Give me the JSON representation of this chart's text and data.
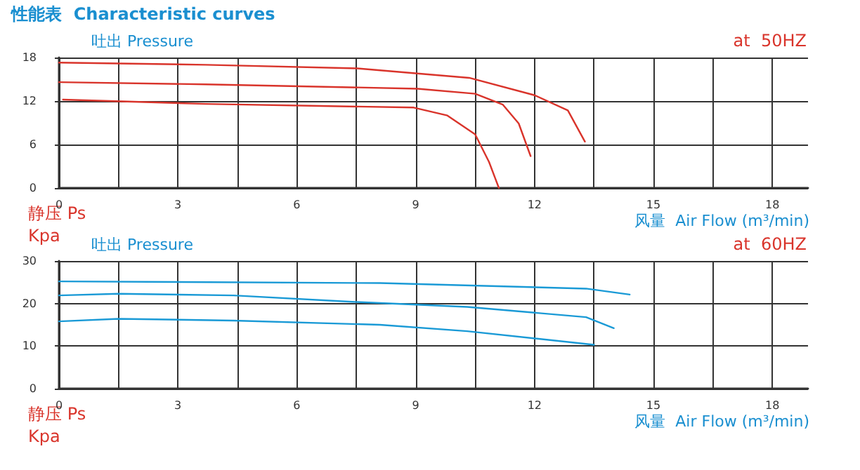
{
  "chart_data": [
    {
      "type": "line",
      "title": "性能表  Characteristic curves",
      "ylabel": "吐出 Pressure",
      "xlabel": "风量  Air Flow (m³/min)",
      "annotations": [
        "at  50HZ",
        "静压 Ps",
        "Kpa"
      ],
      "xlim": [
        0,
        18.9
      ],
      "xticks": [
        0,
        {
          "value": 1.5,
          "label": null
        },
        3,
        {
          "value": 4.5,
          "label": null
        },
        6,
        {
          "value": 7.5,
          "label": null
        },
        9,
        {
          "value": 10.5,
          "label": null
        },
        12,
        {
          "value": 13.5,
          "label": null
        },
        15,
        {
          "value": 16.5,
          "label": null
        },
        18
      ],
      "ylim": [
        0,
        18
      ],
      "yticks": [
        0,
        6,
        12,
        18
      ],
      "grid": true,
      "marker": "none",
      "line_style": "solid",
      "series": [
        {
          "color": "#d9342b",
          "x": [
            0,
            3.7,
            7.53,
            10.35,
            12.0,
            12.84,
            13.27
          ],
          "values": [
            17.3,
            17.0,
            16.5,
            15.2,
            12.8,
            10.7,
            6.4
          ]
        },
        {
          "color": "#d9342b",
          "x": [
            0,
            3.7,
            9.05,
            10.5,
            11.2,
            11.6,
            11.9
          ],
          "values": [
            14.6,
            14.3,
            13.7,
            13.0,
            11.5,
            8.9,
            4.4
          ]
        },
        {
          "color": "#d9342b",
          "x": [
            0.1,
            3.7,
            8.95,
            9.8,
            10.5,
            10.85,
            11.1
          ],
          "values": [
            12.2,
            11.6,
            11.1,
            10.0,
            7.4,
            3.6,
            0
          ]
        }
      ]
    },
    {
      "type": "line",
      "ylabel": "吐出 Pressure",
      "xlabel": "风量  Air Flow (m³/min)",
      "annotations": [
        "at  60HZ",
        "静压 Ps",
        "Kpa"
      ],
      "xlim": [
        0,
        18.9
      ],
      "xticks": [
        0,
        {
          "value": 1.5,
          "label": null
        },
        3,
        {
          "value": 4.5,
          "label": null
        },
        6,
        {
          "value": 7.5,
          "label": null
        },
        9,
        {
          "value": 10.5,
          "label": null
        },
        12,
        {
          "value": 13.5,
          "label": null
        },
        15,
        {
          "value": 16.5,
          "label": null
        },
        18
      ],
      "ylim": [
        0,
        30
      ],
      "yticks": [
        0,
        10,
        20,
        30
      ],
      "grid": true,
      "marker": "none",
      "line_style": "solid",
      "series": [
        {
          "color": "#1a9ad6",
          "x": [
            0,
            8.1,
            13.3,
            14.4
          ],
          "values": [
            25.2,
            24.8,
            23.5,
            22.1
          ]
        },
        {
          "color": "#1a9ad6",
          "x": [
            0,
            1.5,
            4.4,
            7.4,
            10.3,
            13.3,
            14.0
          ],
          "values": [
            21.9,
            22.3,
            21.9,
            20.4,
            19.2,
            16.8,
            14.2
          ]
        },
        {
          "color": "#1a9ad6",
          "x": [
            0,
            1.5,
            4.4,
            8.1,
            10.3,
            13.5
          ],
          "values": [
            15.8,
            16.4,
            16.0,
            15.0,
            13.5,
            10.3
          ]
        }
      ]
    }
  ]
}
